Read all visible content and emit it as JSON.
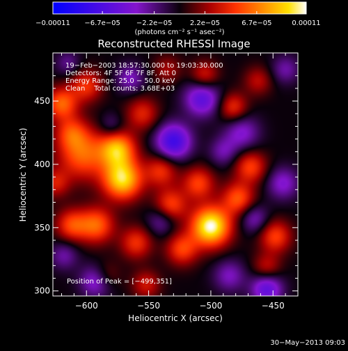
{
  "chart_data": {
    "type": "heatmap",
    "title": "Reconstructed RHESSI Image",
    "xlabel": "Heliocentric X (arcsec)",
    "ylabel": "Heliocentric Y (arcsec)",
    "xlim": [
      -627,
      -430
    ],
    "ylim": [
      296,
      488
    ],
    "x_ticks": [
      -600,
      -550,
      -500,
      -450
    ],
    "x_tick_labels": [
      "−600",
      "−550",
      "−500",
      "−450"
    ],
    "y_ticks": [
      300,
      350,
      400,
      450
    ],
    "y_tick_labels": [
      "300",
      "350",
      "400",
      "450"
    ],
    "colorbar": {
      "ticks": [
        -0.00011,
        -6.7e-05,
        -2.2e-05,
        2.2e-05,
        6.7e-05,
        0.00011
      ],
      "tick_labels": [
        "−0.00011",
        "−6.7e−05",
        "−2.2e−05",
        "2.2e−05",
        "6.7e−05",
        "0.00011"
      ],
      "unit_label": "(photons cm⁻² s⁻¹ asec⁻²)",
      "range": [
        -0.00011,
        0.00011
      ]
    },
    "annotations": [
      "19−Feb−2003 18:57:30.000 to 19:03:30.000",
      "Detectors: 4F 5F 6F 7F 8F, Att 0",
      "Energy Range: 25.0 − 50.0 keV",
      "Clean    Total counts: 3.68E+03"
    ],
    "peak_label": "Position of Peak = [−499,351]",
    "peak": {
      "x": -499,
      "y": 351
    },
    "blobs": [
      {
        "x": -500,
        "y": 351,
        "v": 0.00011,
        "s": 11
      },
      {
        "x": -571,
        "y": 388,
        "v": 9.5e-05,
        "s": 11
      },
      {
        "x": -575,
        "y": 412,
        "v": 8e-05,
        "s": 10
      },
      {
        "x": -603,
        "y": 408,
        "v": 6e-05,
        "s": 14
      },
      {
        "x": -620,
        "y": 448,
        "v": 6e-05,
        "s": 9
      },
      {
        "x": -600,
        "y": 462,
        "v": 4.5e-05,
        "s": 9
      },
      {
        "x": -612,
        "y": 425,
        "v": 4e-05,
        "s": 9
      },
      {
        "x": -555,
        "y": 440,
        "v": 4e-05,
        "s": 9
      },
      {
        "x": -540,
        "y": 395,
        "v": 4.5e-05,
        "s": 9
      },
      {
        "x": -532,
        "y": 368,
        "v": 5e-05,
        "s": 9
      },
      {
        "x": -510,
        "y": 385,
        "v": 5e-05,
        "s": 9
      },
      {
        "x": -478,
        "y": 373,
        "v": 5.5e-05,
        "s": 9
      },
      {
        "x": -468,
        "y": 398,
        "v": 5e-05,
        "s": 9
      },
      {
        "x": -482,
        "y": 445,
        "v": 4.5e-05,
        "s": 8
      },
      {
        "x": -505,
        "y": 470,
        "v": 4e-05,
        "s": 8
      },
      {
        "x": -592,
        "y": 352,
        "v": 6e-05,
        "s": 10
      },
      {
        "x": -612,
        "y": 352,
        "v": 5e-05,
        "s": 9
      },
      {
        "x": -560,
        "y": 338,
        "v": 4.5e-05,
        "s": 9
      },
      {
        "x": -523,
        "y": 333,
        "v": 5e-05,
        "s": 9
      },
      {
        "x": -448,
        "y": 343,
        "v": 5e-05,
        "s": 9
      },
      {
        "x": -455,
        "y": 318,
        "v": 3.5e-05,
        "s": 8
      },
      {
        "x": -462,
        "y": 466,
        "v": 3e-05,
        "s": 8
      },
      {
        "x": -552,
        "y": 305,
        "v": 3.5e-05,
        "s": 8
      },
      {
        "x": -585,
        "y": 312,
        "v": 3e-05,
        "s": 8
      },
      {
        "x": -535,
        "y": 475,
        "v": 2.5e-05,
        "s": 8
      },
      {
        "x": -625,
        "y": 385,
        "v": 3.5e-05,
        "s": 8
      },
      {
        "x": -530,
        "y": 418,
        "v": -7.5e-05,
        "s": 10
      },
      {
        "x": -507,
        "y": 452,
        "v": -6e-05,
        "s": 10
      },
      {
        "x": -475,
        "y": 425,
        "v": -4e-05,
        "s": 10
      },
      {
        "x": -592,
        "y": 308,
        "v": -5e-05,
        "s": 9
      },
      {
        "x": -455,
        "y": 302,
        "v": -6e-05,
        "s": 9
      },
      {
        "x": -485,
        "y": 312,
        "v": -3.5e-05,
        "s": 9
      },
      {
        "x": -540,
        "y": 355,
        "v": -3e-05,
        "s": 8
      },
      {
        "x": -465,
        "y": 357,
        "v": -3.5e-05,
        "s": 8
      },
      {
        "x": -442,
        "y": 385,
        "v": -4e-05,
        "s": 9
      },
      {
        "x": -565,
        "y": 468,
        "v": -3.5e-05,
        "s": 8
      },
      {
        "x": -618,
        "y": 328,
        "v": -3e-05,
        "s": 8
      },
      {
        "x": -580,
        "y": 430,
        "v": -2.5e-05,
        "s": 7
      },
      {
        "x": -490,
        "y": 410,
        "v": -3e-05,
        "s": 8
      },
      {
        "x": -615,
        "y": 480,
        "v": -2.5e-05,
        "s": 7
      },
      {
        "x": -440,
        "y": 475,
        "v": -3e-05,
        "s": 8
      }
    ]
  },
  "footer": {
    "timestamp": "30−May−2013 09:03"
  }
}
